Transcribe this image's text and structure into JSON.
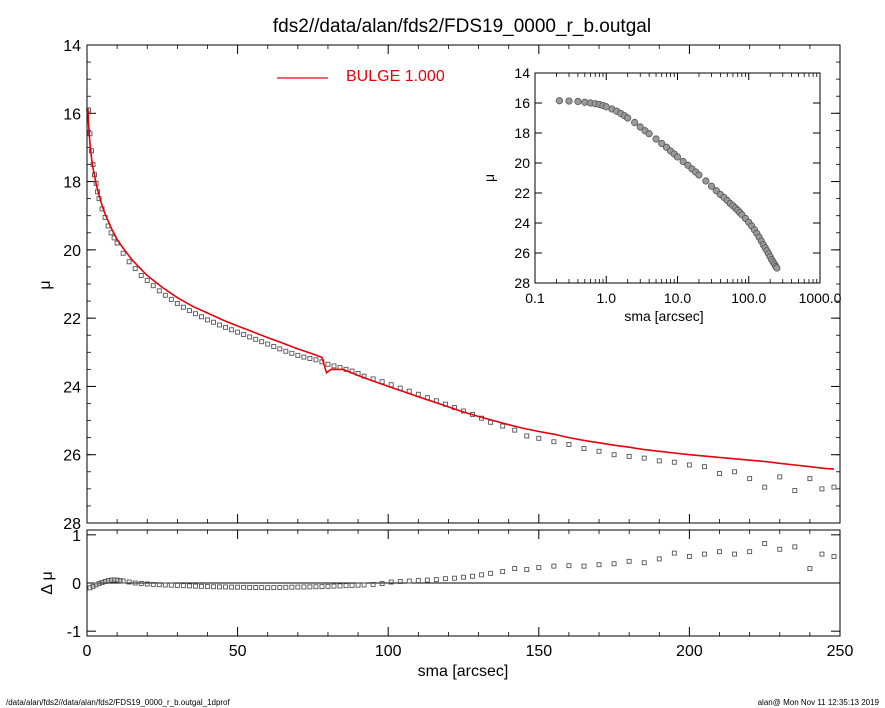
{
  "chart_data": [
    {
      "id": "main",
      "type": "scatter",
      "title": "fds2//data/alan/fds2/FDS19_0000_r_b.outgal",
      "xlabel": "",
      "ylabel": "μ",
      "xlim": [
        0,
        250
      ],
      "ylim": [
        28,
        14
      ],
      "yticks": [
        "14",
        "16",
        "18",
        "20",
        "22",
        "24",
        "26",
        "28"
      ],
      "legend": {
        "label": "BULGE  1.000",
        "color": "#e8000b",
        "placement": "top-center"
      },
      "series": [
        {
          "role": "data",
          "marker": "square",
          "color": "#555555",
          "x": [
            0.5,
            1,
            1.5,
            2,
            2.5,
            3,
            3.5,
            4,
            5,
            6,
            7,
            8,
            9,
            10,
            12,
            14,
            16,
            18,
            20,
            22,
            24,
            26,
            28,
            30,
            32,
            34,
            36,
            38,
            40,
            42,
            44,
            46,
            48,
            50,
            52,
            54,
            56,
            58,
            60,
            62,
            64,
            66,
            68,
            70,
            72,
            74,
            76,
            78,
            80,
            82,
            84,
            86,
            88,
            90,
            92,
            95,
            98,
            101,
            104,
            107,
            110,
            113,
            116,
            119,
            122,
            125,
            128,
            131,
            134,
            138,
            142,
            146,
            150,
            155,
            160,
            165,
            170,
            175,
            180,
            185,
            190,
            195,
            200,
            205,
            210,
            215,
            220,
            225,
            230,
            235,
            240,
            244,
            248
          ],
          "y": [
            15.9,
            16.6,
            17.1,
            17.5,
            17.8,
            18.05,
            18.3,
            18.5,
            18.8,
            19.05,
            19.3,
            19.5,
            19.65,
            19.8,
            20.1,
            20.35,
            20.55,
            20.75,
            20.9,
            21.05,
            21.2,
            21.33,
            21.45,
            21.57,
            21.68,
            21.78,
            21.87,
            21.96,
            22.05,
            22.12,
            22.2,
            22.27,
            22.34,
            22.41,
            22.48,
            22.55,
            22.62,
            22.69,
            22.76,
            22.83,
            22.9,
            22.97,
            23.03,
            23.09,
            23.14,
            23.18,
            23.22,
            23.28,
            23.35,
            23.4,
            23.45,
            23.5,
            23.55,
            23.62,
            23.7,
            23.78,
            23.86,
            23.95,
            24.05,
            24.14,
            24.23,
            24.33,
            24.42,
            24.52,
            24.62,
            24.72,
            24.82,
            24.93,
            25.05,
            25.16,
            25.28,
            25.45,
            25.52,
            25.62,
            25.7,
            25.82,
            25.9,
            26.0,
            26.05,
            26.1,
            26.18,
            26.22,
            26.3,
            26.35,
            26.55,
            26.5,
            26.7,
            26.95,
            26.65,
            27.05,
            26.7,
            27.0,
            26.95
          ]
        },
        {
          "role": "model",
          "marker": "line",
          "color": "#e8000b",
          "x": [
            0.3,
            0.5,
            1,
            1.5,
            2,
            3,
            4,
            5,
            6,
            8,
            10,
            12,
            15,
            20,
            25,
            30,
            35,
            40,
            45,
            50,
            55,
            60,
            65,
            70,
            75,
            78,
            79.5,
            81,
            85,
            90,
            95,
            100,
            105,
            110,
            115,
            120,
            125,
            130,
            135,
            140,
            145,
            150,
            155,
            160,
            165,
            170,
            175,
            180,
            185,
            190,
            195,
            200,
            205,
            210,
            215,
            220,
            225,
            230,
            235,
            240,
            245,
            248
          ],
          "y": [
            15.85,
            16.3,
            16.9,
            17.3,
            17.6,
            18.05,
            18.4,
            18.7,
            18.95,
            19.35,
            19.7,
            19.95,
            20.3,
            20.75,
            21.1,
            21.4,
            21.65,
            21.85,
            22.05,
            22.23,
            22.4,
            22.57,
            22.73,
            22.9,
            23.05,
            23.15,
            23.6,
            23.5,
            23.5,
            23.68,
            23.84,
            24.0,
            24.15,
            24.3,
            24.45,
            24.6,
            24.75,
            24.88,
            25.0,
            25.12,
            25.23,
            25.32,
            25.4,
            25.5,
            25.58,
            25.65,
            25.72,
            25.78,
            25.85,
            25.9,
            25.95,
            26.0,
            26.04,
            26.08,
            26.12,
            26.16,
            26.2,
            26.25,
            26.3,
            26.35,
            26.4,
            26.42
          ]
        }
      ]
    },
    {
      "id": "residual",
      "type": "scatter",
      "xlabel": "sma [arcsec]",
      "ylabel": "Δ μ",
      "xlim": [
        0,
        250
      ],
      "ylim": [
        -1.1,
        1.1
      ],
      "xticks": [
        "0",
        "50",
        "100",
        "150",
        "200",
        "250"
      ],
      "yticks": [
        "1",
        "0",
        "-1"
      ],
      "series": [
        {
          "marker": "square",
          "color": "#555555",
          "x": [
            1,
            2,
            3,
            4,
            5,
            6,
            7,
            8,
            9,
            10,
            11,
            12,
            14,
            16,
            18,
            20,
            22,
            24,
            26,
            28,
            30,
            32,
            34,
            36,
            38,
            40,
            42,
            44,
            46,
            48,
            50,
            52,
            54,
            56,
            58,
            60,
            62,
            64,
            66,
            68,
            70,
            72,
            74,
            76,
            78,
            80,
            82,
            84,
            86,
            88,
            90,
            92,
            95,
            98,
            101,
            104,
            107,
            110,
            113,
            116,
            119,
            122,
            125,
            128,
            131,
            134,
            138,
            142,
            146,
            150,
            155,
            160,
            165,
            170,
            175,
            180,
            185,
            190,
            195,
            200,
            205,
            210,
            215,
            220,
            225,
            230,
            235,
            240,
            244,
            248
          ],
          "y": [
            -0.1,
            -0.07,
            -0.04,
            -0.01,
            0.01,
            0.03,
            0.05,
            0.06,
            0.065,
            0.06,
            0.05,
            0.04,
            0.02,
            0.0,
            -0.01,
            -0.02,
            -0.03,
            -0.035,
            -0.04,
            -0.045,
            -0.05,
            -0.055,
            -0.06,
            -0.065,
            -0.07,
            -0.075,
            -0.078,
            -0.08,
            -0.082,
            -0.085,
            -0.087,
            -0.09,
            -0.092,
            -0.094,
            -0.095,
            -0.096,
            -0.095,
            -0.093,
            -0.09,
            -0.087,
            -0.085,
            -0.082,
            -0.08,
            -0.078,
            -0.075,
            -0.07,
            -0.065,
            -0.06,
            -0.055,
            -0.05,
            -0.045,
            -0.04,
            -0.03,
            -0.01,
            0.02,
            0.03,
            0.04,
            0.05,
            0.06,
            0.07,
            0.09,
            0.1,
            0.12,
            0.14,
            0.17,
            0.2,
            0.24,
            0.3,
            0.28,
            0.32,
            0.35,
            0.36,
            0.35,
            0.38,
            0.4,
            0.45,
            0.42,
            0.5,
            0.62,
            0.55,
            0.6,
            0.65,
            0.6,
            0.65,
            0.82,
            0.7,
            0.75,
            0.3,
            0.6,
            0.55
          ]
        }
      ]
    },
    {
      "id": "inset",
      "type": "scatter",
      "xlabel": "sma [arcsec]",
      "ylabel": "μ",
      "xscale": "log",
      "xlim": [
        0.1,
        1000
      ],
      "ylim": [
        28,
        14
      ],
      "xticks": [
        "0.1",
        "1.0",
        "10.0",
        "100.0",
        "1000.0"
      ],
      "yticks": [
        "14",
        "16",
        "18",
        "20",
        "22",
        "24",
        "26",
        "28"
      ],
      "series": [
        {
          "marker": "circle",
          "color": "#555555",
          "x": [
            0.22,
            0.3,
            0.4,
            0.5,
            0.6,
            0.7,
            0.8,
            0.9,
            1.0,
            1.2,
            1.4,
            1.6,
            1.8,
            2.0,
            2.5,
            3.0,
            3.5,
            4.0,
            5.0,
            6.0,
            7.0,
            8.0,
            9.0,
            10.0,
            12,
            14,
            16,
            18,
            20,
            25,
            30,
            35,
            40,
            45,
            50,
            55,
            60,
            65,
            70,
            75,
            80,
            90,
            100,
            110,
            120,
            130,
            140,
            150,
            160,
            170,
            180,
            190,
            200,
            210,
            220,
            230,
            240,
            248
          ],
          "y": [
            15.85,
            15.87,
            15.9,
            15.95,
            16.0,
            16.05,
            16.1,
            16.17,
            16.25,
            16.4,
            16.55,
            16.7,
            16.85,
            17.0,
            17.3,
            17.6,
            17.85,
            18.05,
            18.4,
            18.7,
            18.95,
            19.2,
            19.4,
            19.6,
            19.9,
            20.15,
            20.4,
            20.6,
            20.8,
            21.2,
            21.55,
            21.85,
            22.1,
            22.3,
            22.5,
            22.7,
            22.85,
            23.0,
            23.15,
            23.3,
            23.45,
            23.7,
            23.95,
            24.2,
            24.45,
            24.7,
            24.95,
            25.2,
            25.45,
            25.65,
            25.85,
            26.05,
            26.25,
            26.45,
            26.6,
            26.75,
            26.9,
            27.0
          ]
        }
      ]
    }
  ],
  "footer": {
    "left": "/data/alan/fds2//data/alan/fds2/FDS19_0000_r_b.outgal_1dprof",
    "right": "alan@  Mon Nov 11 12:35:13 2019"
  }
}
